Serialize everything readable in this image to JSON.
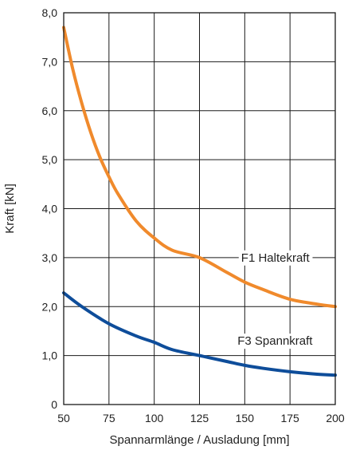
{
  "chart_data": {
    "type": "line",
    "xlabel": "Spannarmlänge / Ausladung [mm]",
    "ylabel": "Kraft [kN]",
    "xlim": [
      50,
      200
    ],
    "ylim": [
      0,
      8
    ],
    "x_ticks": [
      "50",
      "75",
      "100",
      "125",
      "150",
      "175",
      "200"
    ],
    "y_ticks": [
      "0",
      "1,0",
      "2,0",
      "3,0",
      "4,0",
      "5,0",
      "6,0",
      "7,0",
      "8,0"
    ],
    "grid": true,
    "series": [
      {
        "name": "F1 Haltekraft",
        "color": "#f08a2c",
        "x": [
          50,
          55,
          60,
          65,
          70,
          75,
          80,
          90,
          100,
          110,
          125,
          140,
          150,
          160,
          175,
          190,
          200
        ],
        "y": [
          7.7,
          6.85,
          6.15,
          5.55,
          5.05,
          4.65,
          4.3,
          3.75,
          3.4,
          3.15,
          3.0,
          2.7,
          2.5,
          2.35,
          2.15,
          2.05,
          2.0
        ]
      },
      {
        "name": "F3 Spannkraft",
        "color": "#0e4d9a",
        "x": [
          50,
          60,
          75,
          90,
          100,
          110,
          125,
          140,
          150,
          160,
          175,
          190,
          200
        ],
        "y": [
          2.28,
          2.0,
          1.65,
          1.4,
          1.27,
          1.12,
          1.0,
          0.88,
          0.8,
          0.74,
          0.67,
          0.62,
          0.6
        ]
      }
    ]
  }
}
